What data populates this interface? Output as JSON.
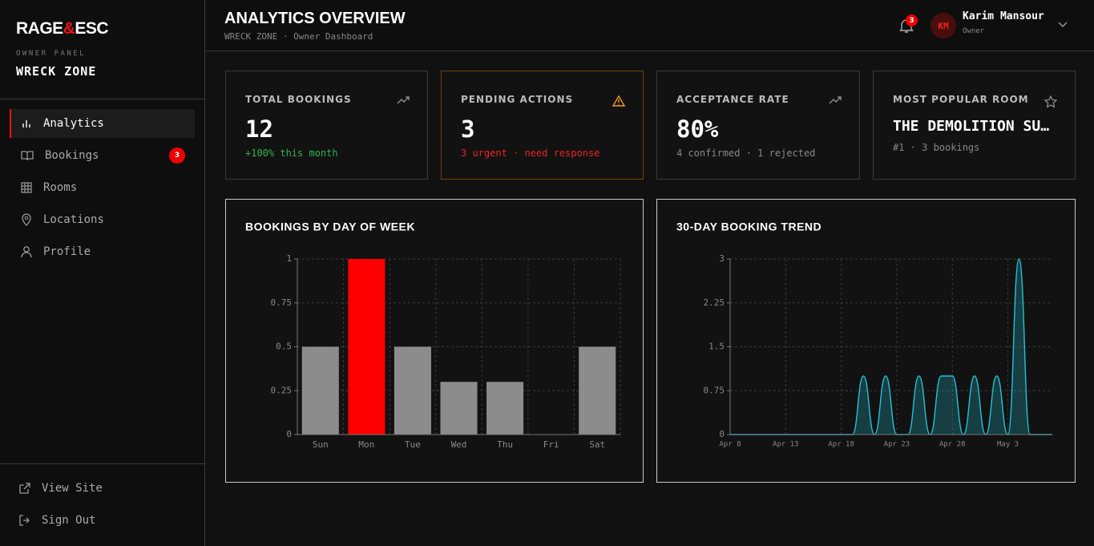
{
  "sidebar": {
    "brand": {
      "left": "RAGE",
      "amp": "&",
      "right": "ESC"
    },
    "panel_label": "OWNER PANEL",
    "venue": "WRECK ZONE",
    "nav": [
      {
        "label": "Analytics"
      },
      {
        "label": "Bookings",
        "badge": "3"
      },
      {
        "label": "Rooms"
      },
      {
        "label": "Locations"
      },
      {
        "label": "Profile"
      }
    ],
    "footer": [
      {
        "label": "View Site"
      },
      {
        "label": "Sign Out"
      }
    ]
  },
  "header": {
    "title": "ANALYTICS OVERVIEW",
    "subtitle": "WRECK ZONE · Owner Dashboard",
    "notifications": "3",
    "avatar": "KM",
    "user_name": "Karim Mansour",
    "user_role": "Owner"
  },
  "stats": [
    {
      "label": "TOTAL BOOKINGS",
      "value": "12",
      "note": "+100% this month"
    },
    {
      "label": "PENDING ACTIONS",
      "value": "3",
      "note": "3 urgent · need response"
    },
    {
      "label": "ACCEPTANCE RATE",
      "value": "80%",
      "note": "4 confirmed · 1 rejected"
    },
    {
      "label": "MOST POPULAR ROOM",
      "value": "THE DEMOLITION SU…",
      "note": "#1 · 3 bookings"
    }
  ],
  "chart_data": [
    {
      "type": "bar",
      "title": "BOOKINGS BY DAY OF WEEK",
      "categories": [
        "Sun",
        "Mon",
        "Tue",
        "Wed",
        "Thu",
        "Fri",
        "Sat"
      ],
      "values": [
        0.5,
        1,
        0.5,
        0.3,
        0.3,
        0,
        0.5
      ],
      "colors": [
        "#8c8c8c",
        "#ff0000",
        "#8c8c8c",
        "#8c8c8c",
        "#8c8c8c",
        "#8c8c8c",
        "#8c8c8c"
      ],
      "ylim": [
        0,
        1
      ],
      "yticks": [
        0,
        0.25,
        0.5,
        0.75,
        1
      ],
      "grid": true
    },
    {
      "type": "line",
      "title": "30-DAY BOOKING TREND",
      "categories": [
        "Apr 8",
        null,
        null,
        null,
        null,
        "Apr 13",
        null,
        null,
        null,
        null,
        "Apr 18",
        null,
        null,
        null,
        null,
        "Apr 23",
        null,
        null,
        null,
        null,
        "Apr 28",
        null,
        null,
        null,
        null,
        "May 3",
        null,
        null,
        null,
        null
      ],
      "values": [
        0,
        0,
        0,
        0,
        0,
        0,
        0,
        0,
        0,
        0,
        0,
        0,
        1,
        0,
        1,
        0,
        0,
        1,
        0,
        1,
        1,
        0,
        1,
        0,
        1,
        0,
        3,
        0,
        0,
        0
      ],
      "color": "#22c3d6",
      "ylim": [
        0,
        3
      ],
      "yticks": [
        0,
        0.75,
        1.5,
        2.25,
        3
      ],
      "grid": true
    }
  ]
}
